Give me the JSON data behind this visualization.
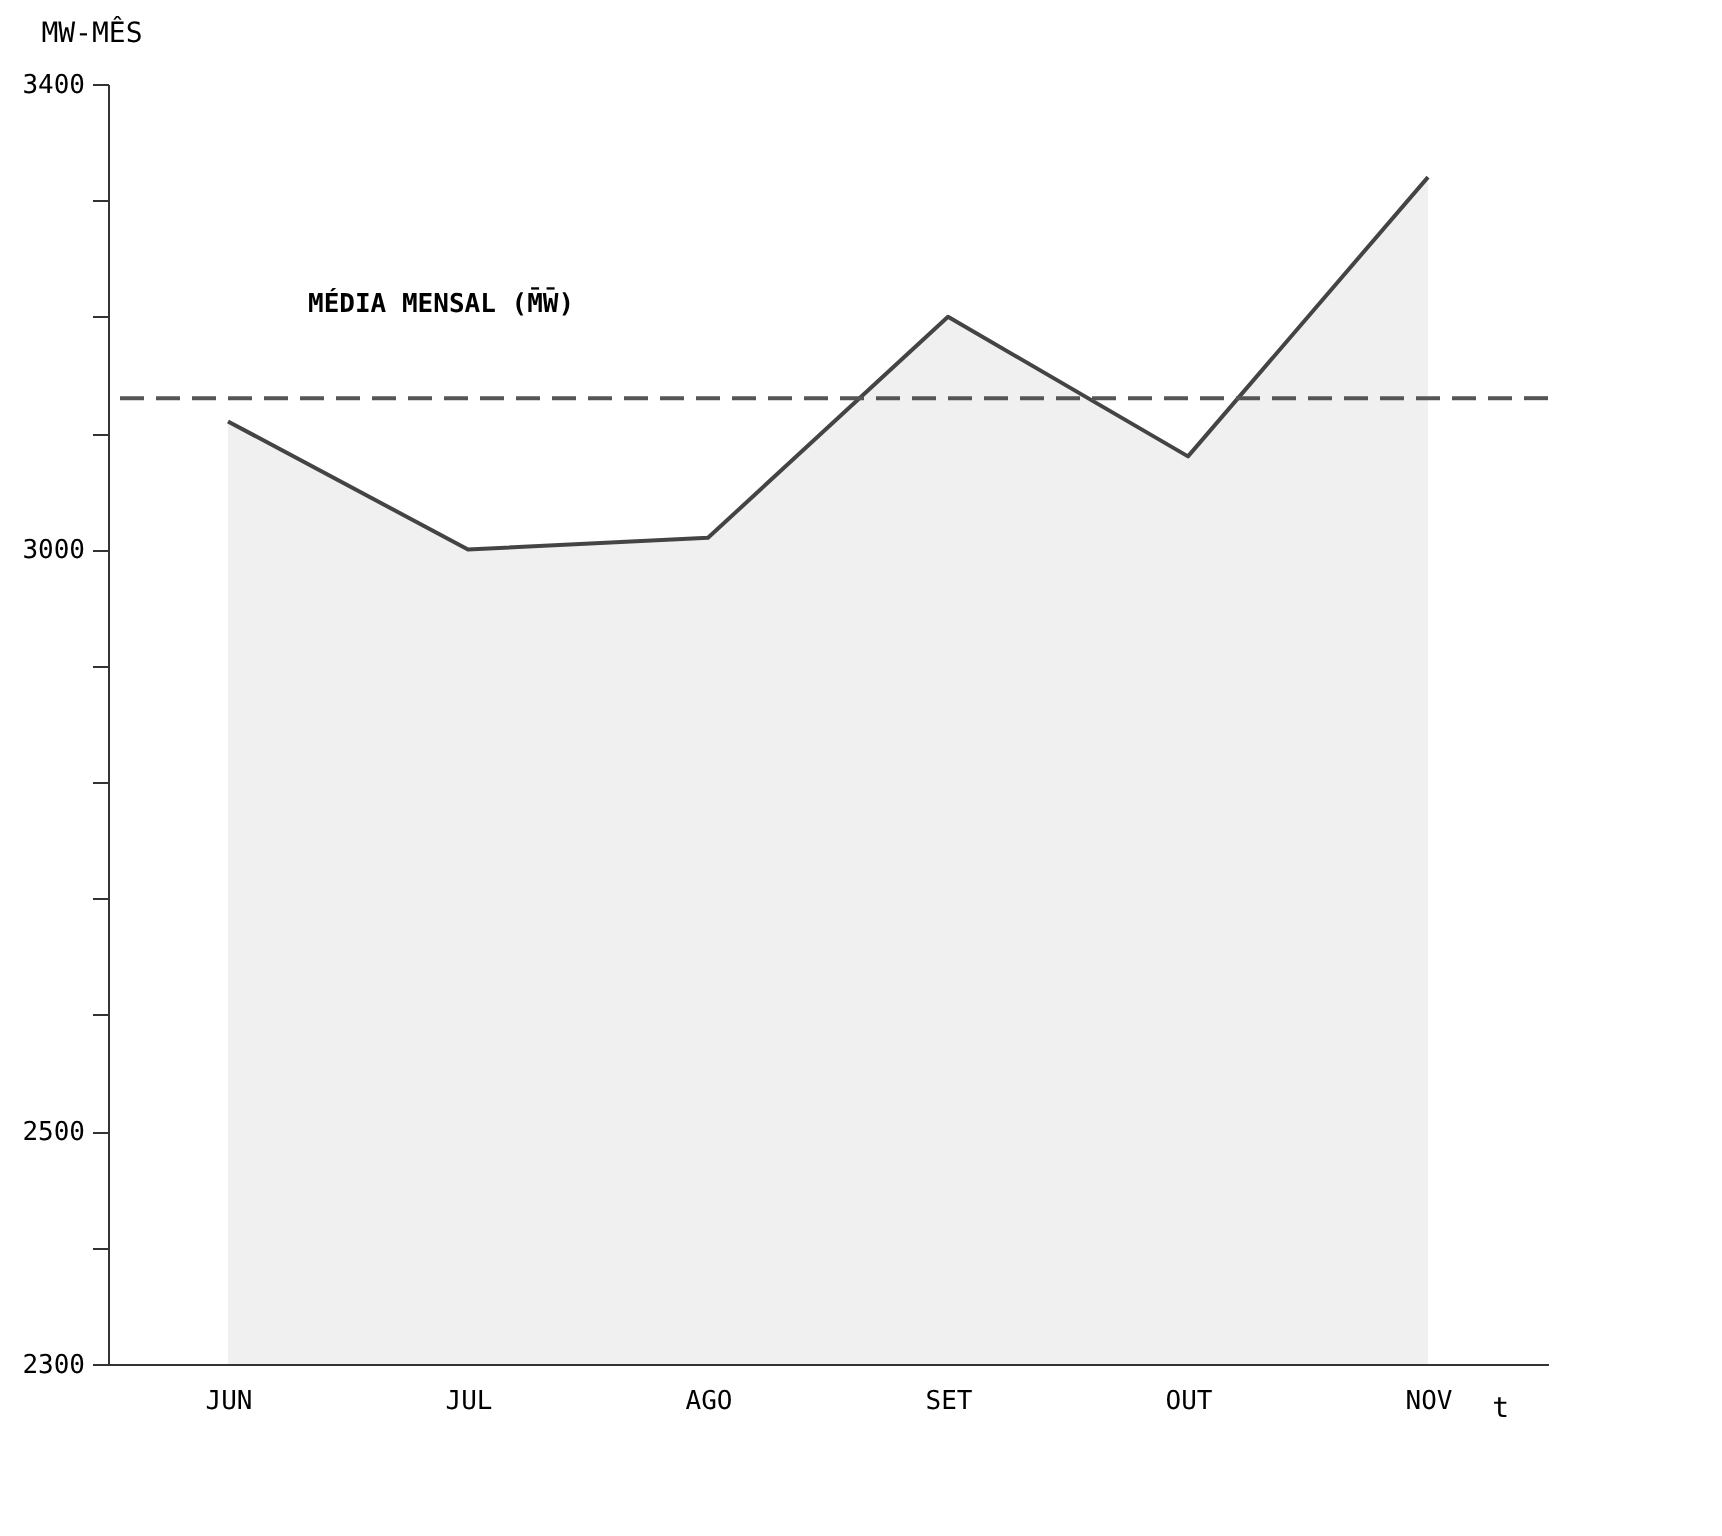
{
  "chart_data": {
    "type": "area",
    "ylabel": "MW-MÊS",
    "xlabel": "t",
    "categories": [
      "JUN",
      "JUL",
      "AGO",
      "SET",
      "OUT",
      "NOV"
    ],
    "series": [
      {
        "color": "#444444",
        "values": [
          3110,
          3000,
          3010,
          3200,
          3080,
          3320
        ]
      }
    ],
    "ylim": [
      2300,
      3400
    ],
    "yticks": [
      2300,
      {
        "value": 2400,
        "label": null
      },
      2500,
      {
        "value": 2600,
        "label": null
      },
      {
        "value": 2700,
        "label": null
      },
      {
        "value": 2800,
        "label": null
      },
      {
        "value": 2900,
        "label": null
      },
      3000,
      {
        "value": 3100,
        "label": null
      },
      {
        "value": 3200,
        "label": null
      },
      {
        "value": 3300,
        "label": null
      },
      3400
    ],
    "ref_lines": [
      {
        "axis": "y",
        "value": 3130,
        "label": "MÉDIA MENSAL (M̄W̄)",
        "line_style": "dashed",
        "color": "#555555"
      }
    ],
    "grid": false
  }
}
